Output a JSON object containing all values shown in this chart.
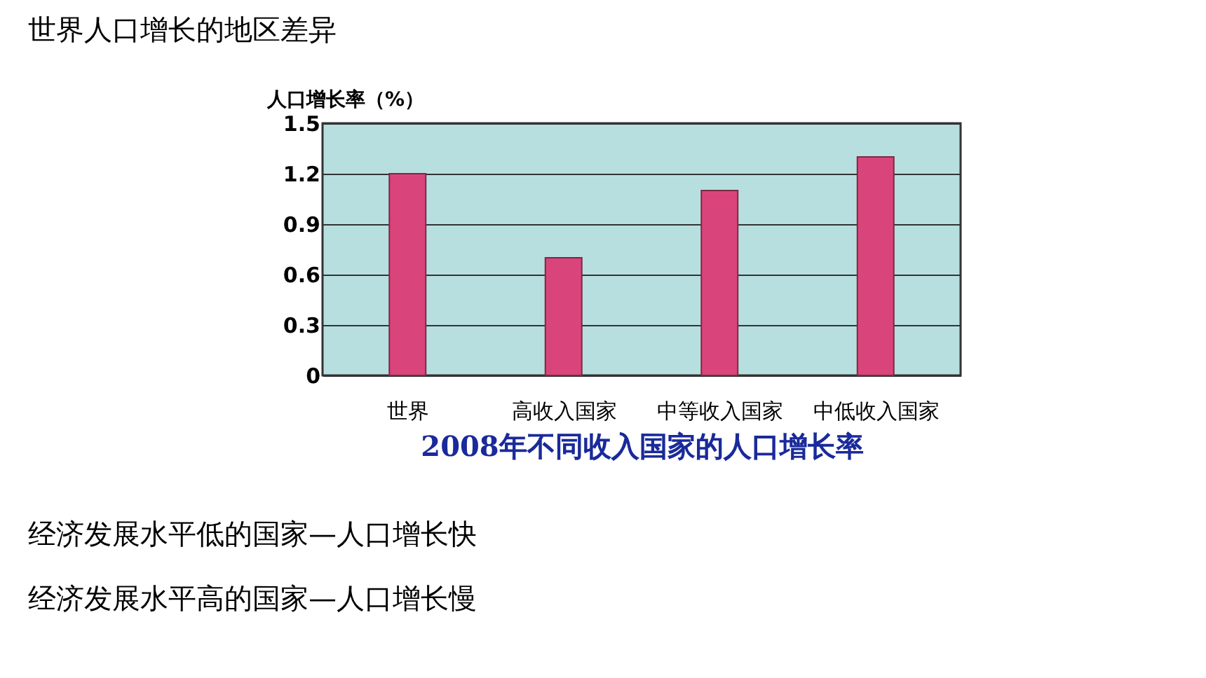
{
  "chart_data": {
    "type": "bar",
    "title": "2008年不同收入国家的人口增长率",
    "ylabel": "人口增长率（%）",
    "categories": [
      "世界",
      "高收入国家",
      "中等收入国家",
      "中低收入国家"
    ],
    "values": [
      1.2,
      0.7,
      1.1,
      1.3
    ],
    "color": "#d9457a",
    "ylim": [
      0,
      1.5
    ],
    "yticks": [
      0,
      0.3,
      0.6,
      0.9,
      1.2,
      1.5
    ],
    "grid": "y",
    "annotations": [
      "世界人口增长的地区差异",
      "经济发展水平低的国家—人口增长快",
      "经济发展水平高的国家—人口增长慢"
    ]
  }
}
